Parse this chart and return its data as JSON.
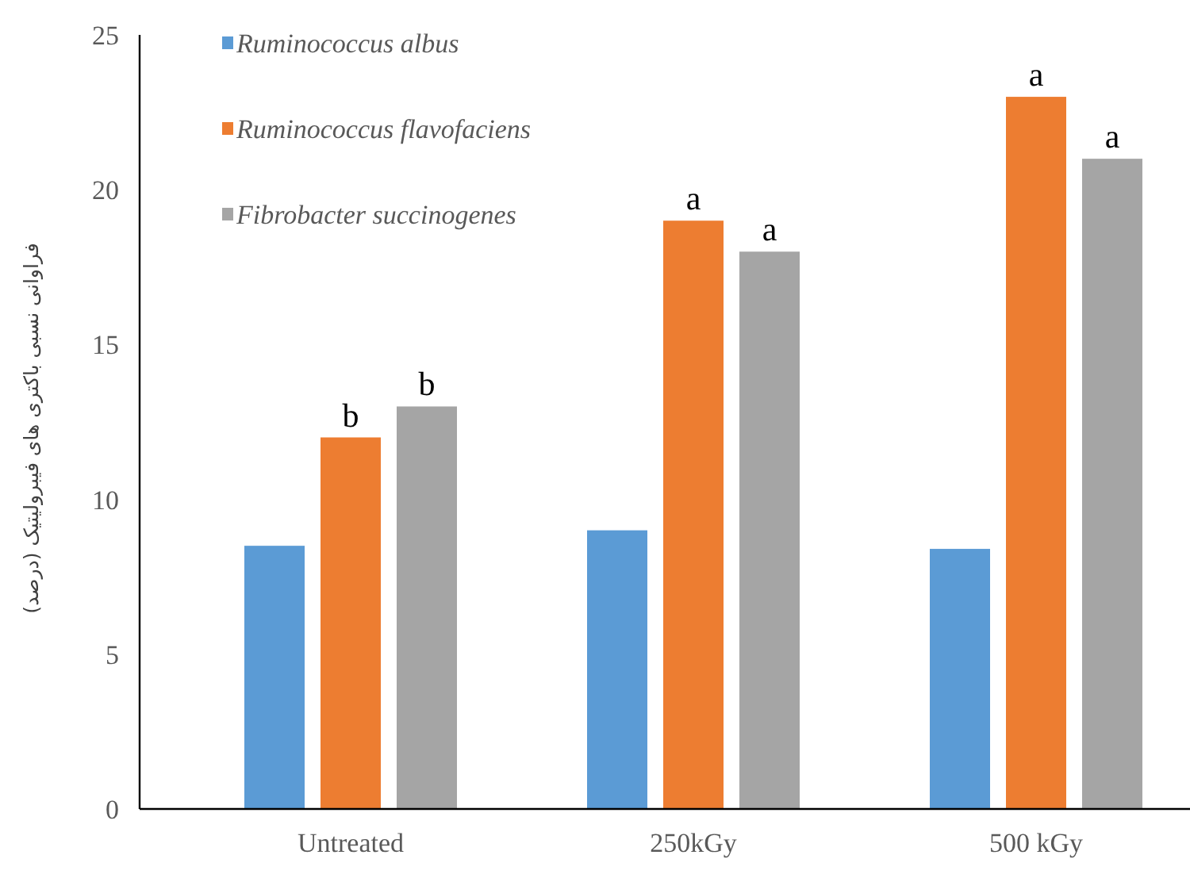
{
  "chart_data": {
    "type": "bar",
    "ylabel": "فراوانی نسبی باکتری های فیبرولیتیک (درصد)",
    "categories": [
      "Untreated",
      "250kGy",
      "500 kGy"
    ],
    "series": [
      {
        "name": "Ruminococcus albus",
        "color": "#5b9bd5",
        "values": [
          8.5,
          9.0,
          8.4
        ]
      },
      {
        "name": "Ruminococcus flavofaciens",
        "color": "#ed7d31",
        "values": [
          12,
          19,
          23
        ]
      },
      {
        "name": "Fibrobacter succinogenes",
        "color": "#a5a5a5",
        "values": [
          13,
          18,
          21
        ]
      }
    ],
    "ylim": [
      0,
      25
    ],
    "yticks": [
      0,
      5,
      10,
      15,
      20,
      25
    ],
    "legend": "top left",
    "grid": false,
    "annotations": [
      {
        "text": "b",
        "x": "Untreated",
        "y": 12
      },
      "b",
      {
        "text": "a",
        "x": "250kGy",
        "y": 19
      },
      "a",
      {
        "text": "a",
        "x": "500 kGy",
        "y": 23
      },
      "a"
    ]
  }
}
